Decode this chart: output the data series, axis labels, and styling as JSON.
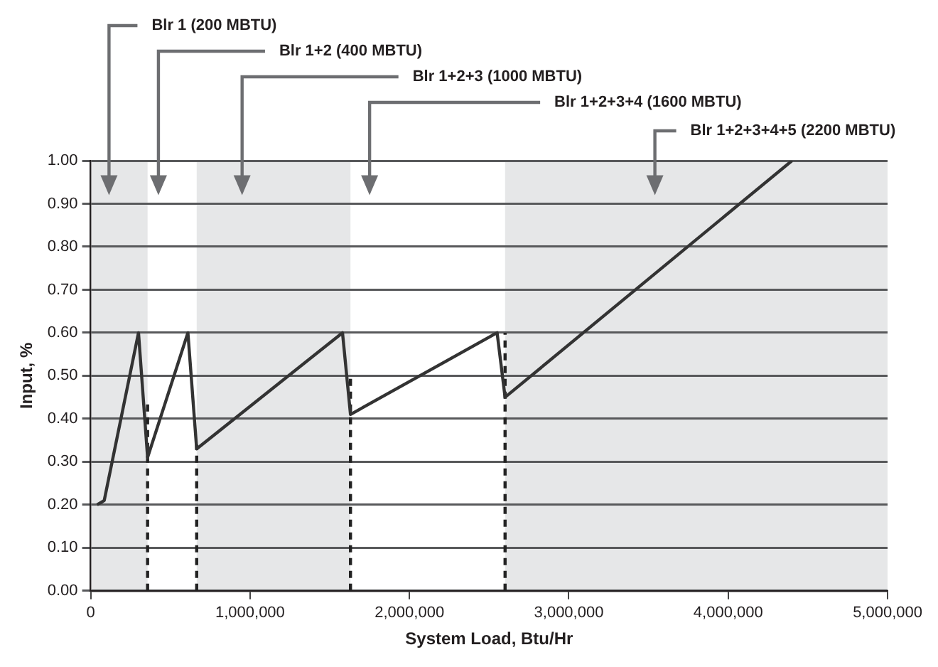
{
  "chart_data": {
    "type": "line",
    "xlabel": "System Load, Btu/Hr",
    "ylabel": "Input, %",
    "xlim": [
      0,
      5000000
    ],
    "ylim": [
      0,
      1
    ],
    "xticks": [
      0,
      {
        "value": 1000000,
        "label": "1,000,000"
      },
      {
        "value": 2000000,
        "label": "2,000,000"
      },
      {
        "value": 3000000,
        "label": "3,000,000"
      },
      {
        "value": 4000000,
        "label": "4,000,000"
      },
      {
        "value": 5000000,
        "label": "5,000,000"
      }
    ],
    "yticks": [
      {
        "value": 0,
        "label": "0.00"
      },
      {
        "value": 0.1,
        "label": "0.10"
      },
      {
        "value": 0.2,
        "label": "0.20"
      },
      {
        "value": 0.3,
        "label": "0.30"
      },
      {
        "value": 0.4,
        "label": "0.40"
      },
      {
        "value": 0.5,
        "label": "0.50"
      },
      {
        "value": 0.6,
        "label": "0.60"
      },
      {
        "value": 0.7,
        "label": "0.70"
      },
      {
        "value": 0.8,
        "label": "0.80"
      },
      {
        "value": 0.9,
        "label": "0.90"
      },
      {
        "value": 1,
        "label": "1.00"
      }
    ],
    "grid": "y",
    "legend": false,
    "marker": "none",
    "series": [
      {
        "color": "#333333",
        "line_style": "solid",
        "x": [
          40000,
          85000,
          300000,
          357000,
          610000,
          665000,
          1580000,
          1630000,
          2550000,
          2600000,
          4400000
        ],
        "values": [
          0.2,
          0.21,
          0.6,
          0.31,
          0.6,
          0.33,
          0.6,
          0.41,
          0.6,
          0.45,
          1.0
        ]
      },
      {
        "color": "#222222",
        "line_style": "dashed",
        "x": [
          357000,
          357000
        ],
        "values": [
          0,
          0.44
        ]
      },
      {
        "color": "#222222",
        "line_style": "dashed",
        "x": [
          665000,
          665000
        ],
        "values": [
          0,
          0.34
        ]
      },
      {
        "color": "#222222",
        "line_style": "dashed",
        "x": [
          1630000,
          1630000
        ],
        "values": [
          0,
          0.5
        ]
      },
      {
        "color": "#222222",
        "line_style": "dashed",
        "x": [
          2600000,
          2600000
        ],
        "values": [
          0,
          0.6
        ]
      }
    ],
    "bands": [
      {
        "axis": "x",
        "from": 0,
        "to": 357000,
        "color": "#e6e7e8"
      },
      {
        "axis": "x",
        "from": 665000,
        "to": 1630000,
        "color": "#e6e7e8"
      },
      {
        "axis": "x",
        "from": 2600000,
        "to": 5000000,
        "color": "#e6e7e8"
      }
    ],
    "annotations": [
      "Blr 1 (200 MBTU)",
      "Blr 1+2 (400 MBTU)",
      "Blr 1+2+3 (1000 MBTU)",
      "Blr 1+2+3+4 (1600 MBTU)",
      "Blr 1+2+3+4+5 (2200 MBTU)"
    ]
  }
}
